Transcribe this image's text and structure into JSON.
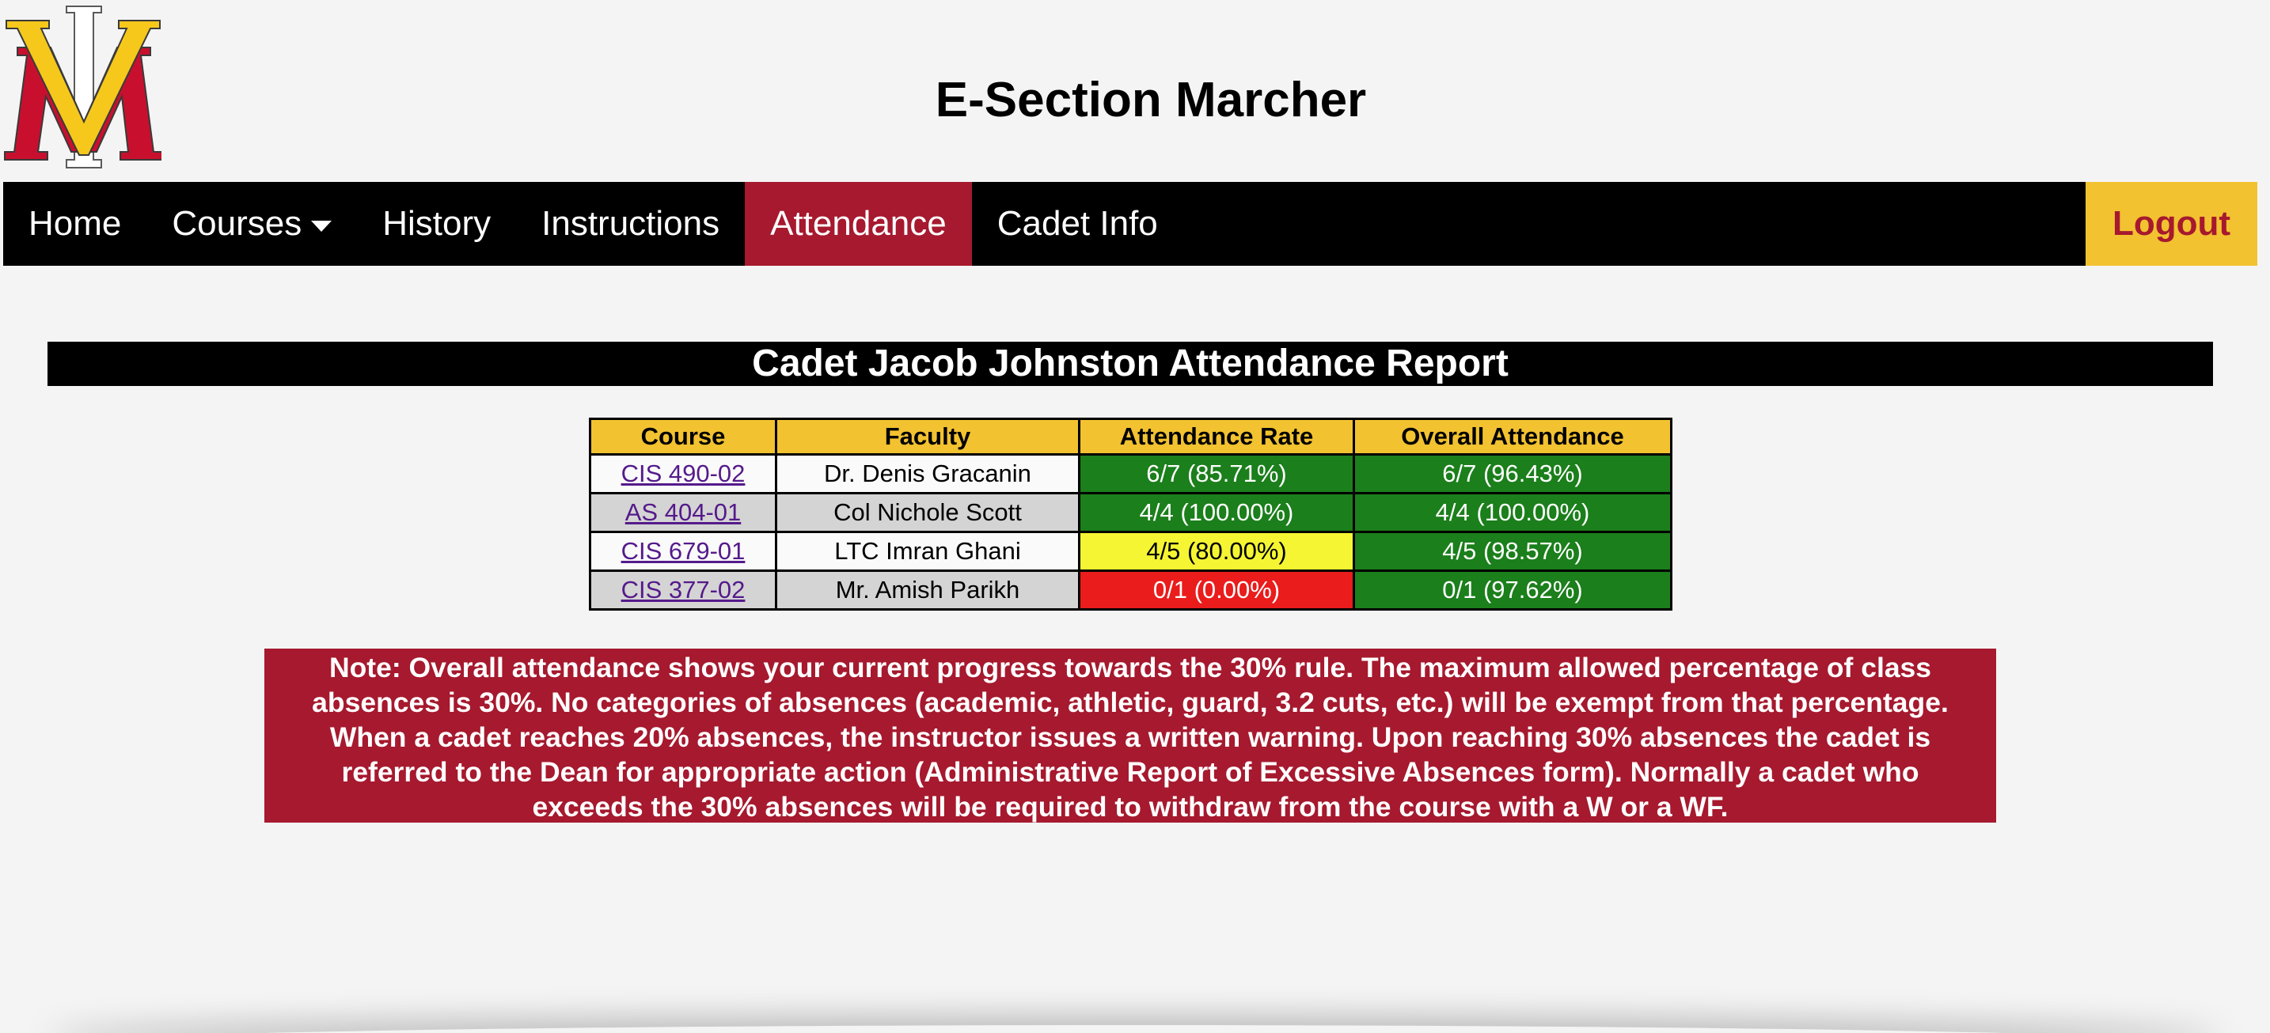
{
  "header": {
    "logo_letters": "VMI",
    "title": "E-Section Marcher"
  },
  "nav": {
    "home": "Home",
    "courses": "Courses",
    "history": "History",
    "instructions": "Instructions",
    "attendance": "Attendance",
    "cadet_info": "Cadet Info",
    "logout": "Logout",
    "active": "Attendance"
  },
  "report": {
    "title": "Cadet Jacob Johnston Attendance Report",
    "columns": [
      "Course",
      "Faculty",
      "Attendance Rate",
      "Overall Attendance"
    ],
    "rows": [
      {
        "course": "CIS 490-02",
        "faculty": "Dr. Denis Gracanin",
        "rate": "6/7 (85.71%)",
        "rate_status": "green",
        "overall": "6/7 (96.43%)",
        "overall_status": "green"
      },
      {
        "course": "AS 404-01",
        "faculty": "Col Nichole Scott",
        "rate": "4/4 (100.00%)",
        "rate_status": "green",
        "overall": "4/4 (100.00%)",
        "overall_status": "green"
      },
      {
        "course": "CIS 679-01",
        "faculty": "LTC Imran Ghani",
        "rate": "4/5 (80.00%)",
        "rate_status": "yellow",
        "overall": "4/5 (98.57%)",
        "overall_status": "green"
      },
      {
        "course": "CIS 377-02",
        "faculty": "Mr. Amish Parikh",
        "rate": "0/1 (0.00%)",
        "rate_status": "red",
        "overall": "0/1 (97.62%)",
        "overall_status": "green"
      }
    ]
  },
  "note": {
    "lines": [
      "Note: Overall attendance shows your current progress towards the 30% rule. The maximum allowed percentage of class",
      "absences is 30%. No categories of absences (academic, athletic, guard, 3.2 cuts, etc.) will be exempt from that percentage.",
      "When a cadet reaches 20% absences, the instructor issues a written warning. Upon reaching 30% absences the cadet is",
      "referred to the Dean for appropriate action (Administrative Report of Excessive Absences form). Normally a cadet who",
      "exceeds the 30% absences will be required to withdraw from the course with a W or a WF."
    ]
  },
  "colors": {
    "brand_red": "#a6192e",
    "brand_gold": "#f2c230",
    "navbar_bg": "#000000",
    "status_green": "#1b7f1b",
    "status_yellow": "#f5f533",
    "status_red": "#ea1c1c"
  }
}
